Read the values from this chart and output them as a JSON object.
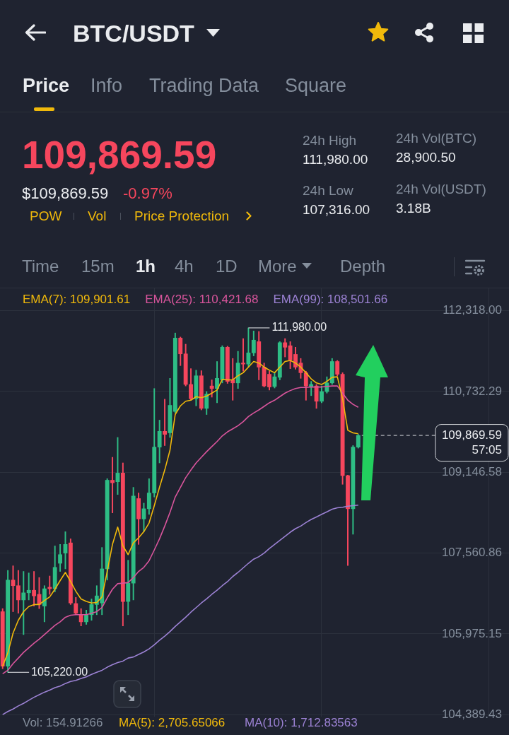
{
  "chart_data": {
    "type": "candlestick",
    "title": "BTC/USDT",
    "categories": [
      null,
      null,
      null,
      null,
      null,
      null,
      null,
      null,
      null,
      null,
      null,
      null,
      null,
      null,
      null,
      null,
      null,
      null,
      null,
      null,
      null,
      null,
      null,
      null,
      null,
      null,
      null,
      null,
      null,
      null,
      null,
      null,
      null,
      null,
      null,
      null,
      null,
      null,
      null,
      null,
      null,
      null,
      null,
      null,
      null,
      null,
      null,
      null,
      null,
      null,
      null,
      null,
      null,
      null,
      null,
      null,
      null,
      null,
      null,
      null,
      null,
      null,
      null,
      null,
      null,
      null,
      null,
      null,
      null
    ],
    "ohlc": [
      [
        106410,
        106470,
        105290,
        105340
      ],
      [
        105340,
        107220,
        105220,
        107030
      ],
      [
        107030,
        107310,
        106410,
        106920
      ],
      [
        106920,
        107220,
        106380,
        106640
      ],
      [
        106640,
        107200,
        105960,
        106780
      ],
      [
        106780,
        107170,
        106640,
        106830
      ],
      [
        106830,
        107200,
        106520,
        106720
      ],
      [
        106750,
        107080,
        106470,
        106550
      ],
      [
        106520,
        106920,
        106210,
        106860
      ],
      [
        106890,
        107110,
        106750,
        106860
      ],
      [
        106860,
        107700,
        106800,
        107280
      ],
      [
        107360,
        107730,
        107200,
        107530
      ],
      [
        107560,
        107980,
        107250,
        107730
      ],
      [
        107760,
        107840,
        106550,
        106580
      ],
      [
        106570,
        106690,
        106350,
        106380
      ],
      [
        106350,
        106470,
        106130,
        106210
      ],
      [
        106210,
        106440,
        106160,
        106350
      ],
      [
        106350,
        106660,
        106240,
        106550
      ],
      [
        106550,
        106920,
        106350,
        106720
      ],
      [
        106580,
        107670,
        106350,
        107250
      ],
      [
        107250,
        109020,
        107030,
        108990
      ],
      [
        108990,
        109440,
        108350,
        108940
      ],
      [
        108960,
        109830,
        108710,
        109130
      ],
      [
        109130,
        109330,
        106130,
        106610
      ],
      [
        106610,
        107420,
        106350,
        106970
      ],
      [
        106970,
        108850,
        106640,
        108680
      ],
      [
        108630,
        108740,
        107730,
        108230
      ],
      [
        108230,
        108540,
        107980,
        108430
      ],
      [
        108430,
        109020,
        108320,
        108740
      ],
      [
        108740,
        110790,
        108660,
        109640
      ],
      [
        109640,
        110170,
        109330,
        109950
      ],
      [
        109950,
        110580,
        109670,
        109890
      ],
      [
        109920,
        110990,
        109830,
        110460
      ],
      [
        110340,
        111880,
        110310,
        111780
      ],
      [
        111780,
        111800,
        111240,
        111470
      ],
      [
        111470,
        111660,
        110840,
        110870
      ],
      [
        110870,
        111180,
        110560,
        110590
      ],
      [
        110590,
        111150,
        110450,
        111040
      ],
      [
        111040,
        111140,
        110370,
        110400
      ],
      [
        110400,
        110730,
        110280,
        110680
      ],
      [
        110840,
        110960,
        110620,
        110790
      ],
      [
        110790,
        111320,
        110510,
        110990
      ],
      [
        110960,
        111630,
        110900,
        111600
      ],
      [
        111600,
        111620,
        110890,
        110930
      ],
      [
        110960,
        111380,
        110560,
        110900
      ],
      [
        110900,
        111520,
        110790,
        111290
      ],
      [
        111290,
        111770,
        111130,
        111270
      ],
      [
        111270,
        111980,
        111210,
        111490
      ],
      [
        111490,
        111920,
        111430,
        111740
      ],
      [
        111710,
        111910,
        110960,
        111210
      ],
      [
        111210,
        111290,
        110820,
        110840
      ],
      [
        111070,
        111130,
        110760,
        110820
      ],
      [
        110830,
        111100,
        110800,
        111020
      ],
      [
        111010,
        111710,
        110960,
        111690
      ],
      [
        111690,
        111770,
        111410,
        111600
      ],
      [
        111630,
        111710,
        111180,
        111350
      ],
      [
        111460,
        111600,
        111170,
        111210
      ],
      [
        111290,
        111380,
        110990,
        111100
      ],
      [
        111100,
        111130,
        110560,
        110840
      ],
      [
        110820,
        110930,
        110650,
        110870
      ],
      [
        110840,
        110870,
        110400,
        110540
      ],
      [
        110540,
        110840,
        110510,
        110730
      ],
      [
        110730,
        111020,
        110700,
        110900
      ],
      [
        110900,
        111380,
        110870,
        111320
      ],
      [
        111320,
        111340,
        111040,
        111070
      ],
      [
        111070,
        111100,
        108910,
        109080
      ],
      [
        109080,
        109090,
        107316,
        108430
      ],
      [
        108430,
        109670,
        107930,
        109640
      ],
      [
        109640,
        109890,
        109620,
        109869.59
      ]
    ],
    "colors": [
      "#f6465d",
      "#2ebd85",
      "#f6465d",
      "#f6465d",
      "#2ebd85",
      "#2ebd85",
      "#f6465d",
      "#f6465d",
      "#2ebd85",
      "#f6465d",
      "#2ebd85",
      "#2ebd85",
      "#2ebd85",
      "#f6465d",
      "#f6465d",
      "#f6465d",
      "#2ebd85",
      "#2ebd85",
      "#2ebd85",
      "#2ebd85",
      "#2ebd85",
      "#f6465d",
      "#2ebd85",
      "#f6465d",
      "#2ebd85",
      "#2ebd85",
      "#f6465d",
      "#2ebd85",
      "#2ebd85",
      "#2ebd85",
      "#2ebd85",
      "#f6465d",
      "#2ebd85",
      "#2ebd85",
      "#f6465d",
      "#f6465d",
      "#f6465d",
      "#2ebd85",
      "#f6465d",
      "#2ebd85",
      "#f6465d",
      "#2ebd85",
      "#2ebd85",
      "#f6465d",
      "#f6465d",
      "#2ebd85",
      "#f6465d",
      "#2ebd85",
      "#2ebd85",
      "#f6465d",
      "#f6465d",
      "#f6465d",
      "#2ebd85",
      "#2ebd85",
      "#f6465d",
      "#f6465d",
      "#f6465d",
      "#f6465d",
      "#f6465d",
      "#2ebd85",
      "#f6465d",
      "#2ebd85",
      "#2ebd85",
      "#2ebd85",
      "#f6465d",
      "#f6465d",
      "#f6465d",
      "#2ebd85",
      "#2ebd85"
    ],
    "series": [
      {
        "name": "EMA(7): 109,901.61",
        "type": "line",
        "color": "#f0b90b",
        "values": [
          105340,
          105600,
          105990,
          106240,
          106410,
          106510,
          106550,
          106550,
          106630,
          106700,
          106850,
          107020,
          107180,
          107000,
          106810,
          106660,
          106610,
          106580,
          106590,
          106700,
          107200,
          107730,
          108070,
          107700,
          107530,
          107760,
          107860,
          107980,
          108150,
          108490,
          108850,
          109190,
          109580,
          110280,
          110450,
          110540,
          110560,
          110630,
          110610,
          110640,
          110700,
          110760,
          110970,
          110960,
          110960,
          111040,
          111100,
          111210,
          111320,
          111290,
          111210,
          111150,
          111100,
          111210,
          111320,
          111340,
          111290,
          111210,
          111100,
          110980,
          110900,
          110870,
          110930,
          111010,
          111020,
          110590,
          109970,
          109920,
          109901.61
        ]
      },
      {
        "name": "EMA(25): 110,421.68",
        "type": "line",
        "color": "#d9559c",
        "values": [
          105190,
          105260,
          105390,
          105500,
          105610,
          105700,
          105790,
          105870,
          105960,
          106050,
          106140,
          106210,
          106300,
          106340,
          106350,
          106350,
          106350,
          106380,
          106410,
          106490,
          106680,
          106850,
          106960,
          106970,
          106980,
          107080,
          107200,
          107280,
          107410,
          107620,
          107840,
          108090,
          108360,
          108660,
          108850,
          109040,
          109190,
          109330,
          109440,
          109550,
          109650,
          109750,
          109860,
          109940,
          110000,
          110060,
          110140,
          110240,
          110310,
          110370,
          110440,
          110510,
          110560,
          110630,
          110700,
          110750,
          110790,
          110810,
          110810,
          110820,
          110820,
          110820,
          110830,
          110840,
          110840,
          110700,
          110560,
          110480,
          110421.68
        ]
      },
      {
        "name": "EMA(99): 108,501.66",
        "type": "line",
        "color": "#9c82d4",
        "values": [
          104390,
          104450,
          104500,
          104560,
          104610,
          104670,
          104730,
          104780,
          104830,
          104870,
          104920,
          104950,
          105000,
          105040,
          105060,
          105100,
          105130,
          105180,
          105220,
          105260,
          105320,
          105370,
          105410,
          105440,
          105500,
          105520,
          105570,
          105620,
          105680,
          105760,
          105850,
          105930,
          106020,
          106120,
          106210,
          106300,
          106400,
          106490,
          106580,
          106660,
          106750,
          106830,
          106920,
          107000,
          107100,
          107180,
          107270,
          107360,
          107440,
          107490,
          107560,
          107650,
          107730,
          107810,
          107890,
          107970,
          108040,
          108090,
          108160,
          108220,
          108270,
          108320,
          108370,
          108420,
          108450,
          108460,
          108480,
          108490,
          108501.66
        ]
      }
    ],
    "ylim": [
      104350,
      112770
    ],
    "yticks": [
      {
        "value": 112318,
        "label": "112,318.00"
      },
      {
        "value": 110732.29,
        "label": "110,732.29"
      },
      {
        "value": 109146.58,
        "label": "109,146.58"
      },
      {
        "value": 107560.86,
        "label": "107,560.86"
      },
      {
        "value": 105975.15,
        "label": "105,975.15"
      },
      {
        "value": 104389.43,
        "label": "104,389.43"
      }
    ],
    "grid": true,
    "tick_labels": "y",
    "legend": "top",
    "marker": "none",
    "ref_lines": [
      {
        "axis": "y",
        "value": 109869.59,
        "label": "109,869.59\n57:05",
        "color": "#d5d8dc",
        "line_style": "dashed"
      }
    ],
    "annotations": [
      "Price",
      "Info",
      "Trading Data",
      "Square",
      "109,869.59",
      "$109,869.59",
      "-0.97%",
      "POW",
      "Vol",
      "Price Protection",
      "24h High",
      "111,980.00",
      "24h Low",
      "107,316.00",
      "24h Vol(BTC)",
      "28,900.50",
      "24h Vol(USDT)",
      "3.18B",
      "Time",
      "15m",
      "1h",
      "4h",
      "1D",
      "More",
      "Depth",
      "111,980.00",
      "105,220.00",
      "Vol: 154.91266",
      "MA(5): 2,705.65066",
      "MA(10): 1,712.83563"
    ]
  }
}
